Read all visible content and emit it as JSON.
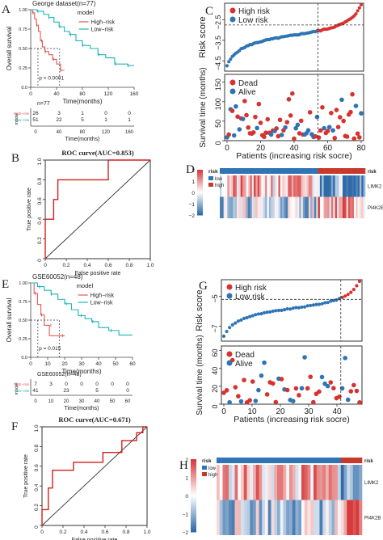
{
  "panel_letters": [
    "A",
    "B",
    "C",
    "D",
    "E",
    "F",
    "G",
    "H"
  ],
  "colors": {
    "high": "#e05a5a",
    "low": "#1fb4b4",
    "red": "#d6322f",
    "blue": "#2f74b5",
    "heat_low": "#2f6aa8",
    "heat_high": "#d63a3a"
  },
  "chart_data": [
    {
      "id": "A",
      "type": "line",
      "subtype": "kaplan-meier",
      "title": "George dataset(n=77)",
      "xlabel": "Time(months)",
      "ylabel": "Overall survival",
      "xlim": [
        0,
        160
      ],
      "ylim": [
        0,
        1
      ],
      "xticks": [
        0,
        40,
        80,
        120,
        160
      ],
      "yticks": [
        "0.0",
        "0.25",
        "0.50",
        "0.75",
        "1.00"
      ],
      "legend_title": "model",
      "pvalue": "p < 0.0001",
      "series": [
        {
          "name": "High−risk",
          "points": [
            [
              0,
              1
            ],
            [
              3,
              0.96
            ],
            [
              6,
              0.88
            ],
            [
              9,
              0.8
            ],
            [
              12,
              0.72
            ],
            [
              15,
              0.6
            ],
            [
              18,
              0.52
            ],
            [
              22,
              0.46
            ],
            [
              28,
              0.42
            ],
            [
              34,
              0.36
            ],
            [
              40,
              0.3
            ],
            [
              46,
              0.22
            ],
            [
              52,
              0.22
            ]
          ]
        },
        {
          "name": "Low−risk",
          "points": [
            [
              0,
              1
            ],
            [
              10,
              0.98
            ],
            [
              20,
              0.94
            ],
            [
              28,
              0.9
            ],
            [
              36,
              0.84
            ],
            [
              44,
              0.78
            ],
            [
              52,
              0.72
            ],
            [
              60,
              0.68
            ],
            [
              70,
              0.6
            ],
            [
              80,
              0.54
            ],
            [
              92,
              0.5
            ],
            [
              104,
              0.42
            ],
            [
              116,
              0.38
            ],
            [
              130,
              0.3
            ],
            [
              142,
              0.3
            ],
            [
              150,
              0.28
            ],
            [
              160,
              0.28
            ]
          ]
        }
      ],
      "risk_table": {
        "title": "n=77",
        "row_label": "model",
        "xlabel": "Time(months)",
        "xticks": [
          0,
          40,
          80,
          120,
          160
        ],
        "rows": [
          {
            "name": "High−risk",
            "values": [
              "26",
              "3",
              "1",
              "0",
              "0"
            ]
          },
          {
            "name": "Low−risk",
            "values": [
              "51",
              "22",
              "5",
              "1",
              "1"
            ]
          }
        ]
      }
    },
    {
      "id": "B",
      "type": "line",
      "subtype": "roc",
      "title": "ROC curve(AUC=0.853)",
      "xlabel": "False positive rate",
      "ylabel": "True positive rate",
      "xlim": [
        0,
        1
      ],
      "ylim": [
        0,
        1
      ],
      "xticks": [
        "0",
        "0.2",
        "0.4",
        "0.6",
        "0.8",
        "1.0"
      ],
      "yticks": [
        "0",
        "0.2",
        "0.4",
        "0.6",
        "0.8",
        "1.0"
      ],
      "points": [
        [
          0,
          0
        ],
        [
          0,
          0.2
        ],
        [
          0,
          0.4
        ],
        [
          0.08,
          0.4
        ],
        [
          0.08,
          0.6
        ],
        [
          0.12,
          0.6
        ],
        [
          0.12,
          0.8
        ],
        [
          0.6,
          0.8
        ],
        [
          0.6,
          1
        ],
        [
          1,
          1
        ]
      ]
    },
    {
      "id": "C",
      "type": "scatter",
      "top": {
        "ylabel": "Risk score",
        "yticks": [
          "−4.5",
          "−3.5",
          "−2.5"
        ],
        "ylim": [
          -5.0,
          -1.7
        ],
        "cutoff_index": 52,
        "legend": [
          "High risk",
          "Low risk"
        ],
        "n": 77
      },
      "bottom": {
        "ylabel": "Survival time (months)",
        "yticks": [
          "0",
          "50",
          "100",
          "150"
        ],
        "ylim": [
          0,
          170
        ],
        "xticks": [
          "0",
          "20",
          "40",
          "60",
          "80"
        ],
        "xlim": [
          0,
          80
        ],
        "xlabel": "Patients (increasing risk socre)",
        "legend": [
          "Dead",
          "Alive"
        ]
      }
    },
    {
      "id": "D",
      "type": "heatmap",
      "legend_title": "risk",
      "legend": [
        "low",
        "high"
      ],
      "colorbar": [
        "2",
        "1",
        "0",
        "−1",
        "−2"
      ],
      "rows": [
        "LIMK2",
        "PI4K2B"
      ],
      "top_label": "risk",
      "n": 77,
      "cutoff": 52
    },
    {
      "id": "E",
      "type": "line",
      "subtype": "kaplan-meier",
      "title": "GSE60052(n=48)",
      "xlabel": "Time(months)",
      "ylabel": "Overall survival",
      "xlim": [
        0,
        60
      ],
      "ylim": [
        0,
        1
      ],
      "xticks": [
        0,
        10,
        20,
        30,
        40,
        50,
        60
      ],
      "yticks": [
        "0.0",
        "0.25",
        "0.50",
        "0.75",
        "1.00"
      ],
      "legend_title": "model",
      "pvalue": "p = 0.015",
      "series": [
        {
          "name": "High−risk",
          "points": [
            [
              0,
              1
            ],
            [
              2,
              0.86
            ],
            [
              4,
              0.71
            ],
            [
              6,
              0.57
            ],
            [
              8,
              0.43
            ],
            [
              10,
              0.43
            ],
            [
              11,
              0.29
            ],
            [
              18,
              0.29
            ],
            [
              20,
              0.29
            ]
          ]
        },
        {
          "name": "Low−risk",
          "points": [
            [
              0,
              1
            ],
            [
              4,
              0.95
            ],
            [
              8,
              0.9
            ],
            [
              12,
              0.85
            ],
            [
              16,
              0.78
            ],
            [
              20,
              0.72
            ],
            [
              24,
              0.64
            ],
            [
              28,
              0.56
            ],
            [
              32,
              0.52
            ],
            [
              36,
              0.48
            ],
            [
              40,
              0.4
            ],
            [
              46,
              0.36
            ],
            [
              52,
              0.3
            ],
            [
              60,
              0.3
            ]
          ]
        }
      ],
      "risk_table": {
        "title": "GSE60052(n=48)",
        "row_label": "model",
        "xlabel": "Time(months)",
        "xticks": [
          0,
          10,
          20,
          30,
          40,
          50,
          60
        ],
        "rows": [
          {
            "name": "High−risk",
            "values": [
              "7",
              "3",
              "0",
              "0",
              "0",
              "0",
              "0"
            ]
          },
          {
            "name": "Low−risk",
            "values": [
              "41",
              "",
              "23",
              "",
              "5",
              "",
              "0"
            ]
          }
        ]
      }
    },
    {
      "id": "F",
      "type": "line",
      "subtype": "roc",
      "title": "ROC curve(AUC=0.671)",
      "xlabel": "False positive rate",
      "ylabel": "True positive rate",
      "xlim": [
        0,
        1
      ],
      "ylim": [
        0,
        1
      ],
      "xticks": [
        "0",
        "0.2",
        "0.4",
        "0.6",
        "0.8",
        "1.0"
      ],
      "yticks": [
        "0",
        "0.2",
        "0.4",
        "0.6",
        "0.8",
        "1.0"
      ],
      "points": [
        [
          0,
          0
        ],
        [
          0,
          0.16
        ],
        [
          0.06,
          0.16
        ],
        [
          0.06,
          0.38
        ],
        [
          0.1,
          0.38
        ],
        [
          0.1,
          0.56
        ],
        [
          0.3,
          0.56
        ],
        [
          0.3,
          0.64
        ],
        [
          0.58,
          0.64
        ],
        [
          0.58,
          0.74
        ],
        [
          0.76,
          0.74
        ],
        [
          0.76,
          0.86
        ],
        [
          0.9,
          0.86
        ],
        [
          0.9,
          0.94
        ],
        [
          0.96,
          0.94
        ],
        [
          0.96,
          1
        ],
        [
          1,
          1
        ]
      ]
    },
    {
      "id": "G",
      "type": "scatter",
      "top": {
        "ylabel": "Risk score",
        "yticks": [
          "−7",
          "−5"
        ],
        "ylim": [
          -8.0,
          -3.9
        ],
        "cutoff_index": 41,
        "legend": [
          "High risk",
          "Low risk"
        ],
        "n": 48
      },
      "bottom": {
        "ylabel": "Survival time (months)",
        "yticks": [
          "0",
          "20",
          "40",
          "60"
        ],
        "ylim": [
          0,
          65
        ],
        "xticks": [
          "0",
          "10",
          "20",
          "30",
          "40"
        ],
        "xlim": [
          0,
          48
        ],
        "xlabel": "Patients (increasing risk socre)",
        "legend": [
          "Dead",
          "Alive"
        ]
      }
    },
    {
      "id": "H",
      "type": "heatmap",
      "legend_title": "risk",
      "legend": [
        "low",
        "high"
      ],
      "colorbar": [
        "2",
        "1",
        "0",
        "−1",
        "−2"
      ],
      "rows": [
        "LIMK2",
        "PI4K2B"
      ],
      "top_label": "risk",
      "n": 48,
      "cutoff": 41
    }
  ]
}
